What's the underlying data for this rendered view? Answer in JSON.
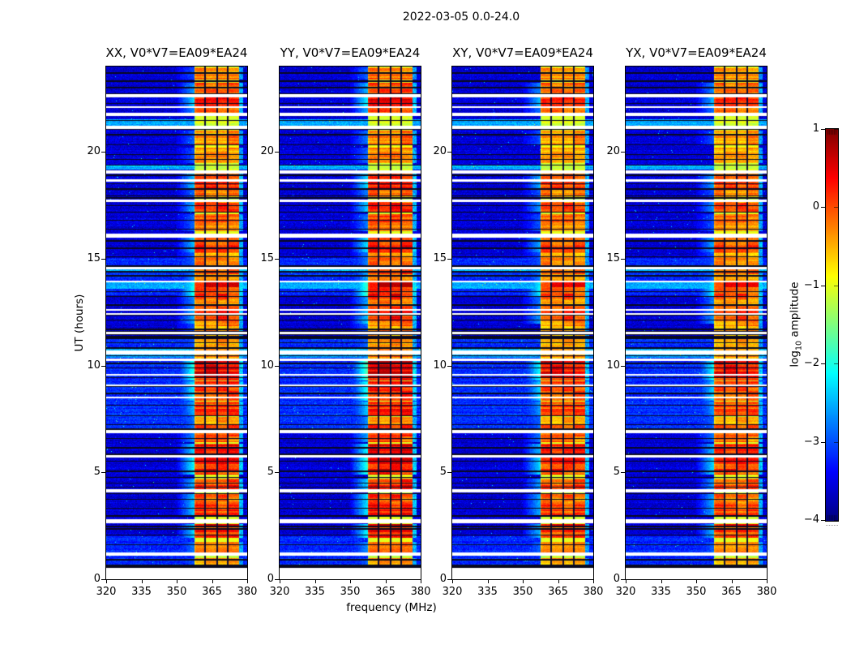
{
  "chart_data": {
    "type": "heatmap",
    "title": "2022-03-05 0.0-24.0",
    "xlabel": "frequency (MHz)",
    "ylabel": "UT (hours)",
    "x": {
      "unit": "MHz",
      "range": [
        320,
        383.3
      ],
      "ticks": [
        320,
        335,
        350,
        365,
        380
      ]
    },
    "y": {
      "unit": "hours",
      "range": [
        0,
        24
      ],
      "ticks": [
        0,
        5,
        10,
        15,
        20
      ]
    },
    "panels": [
      {
        "key": "XX",
        "title": "XX, V0*V7=EA09*EA24",
        "intensity": 1.0
      },
      {
        "key": "YY",
        "title": "YY, V0*V7=EA09*EA24",
        "intensity": 1.12
      },
      {
        "key": "XY",
        "title": "XY, V0*V7=EA09*EA24",
        "intensity": 0.92
      },
      {
        "key": "YX",
        "title": "YX, V0*V7=EA09*EA24",
        "intensity": 0.9
      }
    ],
    "colorbar": {
      "label": "log10 amplitude",
      "label_log": "log",
      "label_sub": "10",
      "label_rest": " amplitude",
      "range": [
        -4,
        1
      ],
      "ticks": [
        1,
        0,
        -1,
        -2,
        -3,
        -4
      ],
      "tick_labels": [
        "1",
        "0",
        "−1",
        "−2",
        "−3",
        "−4"
      ],
      "colormap": "jet"
    },
    "features": {
      "background_log_amplitude": -3.6,
      "rfi_band_mhz": [
        359.6,
        379.6
      ],
      "rfi_band_base_log_amplitude": -1.05,
      "flagged_channels_mhz": [
        364.3,
        369.9,
        374.5
      ],
      "no_data_below_ut": 0.55,
      "white_gaps_ut": [
        [
          22.65,
          2
        ],
        [
          22.12,
          1
        ],
        [
          21.76,
          3
        ],
        [
          21.16,
          2
        ],
        [
          19.08,
          3
        ],
        [
          18.68,
          1
        ],
        [
          17.73,
          1
        ],
        [
          16.1,
          3
        ],
        [
          14.58,
          1
        ],
        [
          13.94,
          1
        ],
        [
          12.61,
          1
        ],
        [
          12.42,
          1
        ],
        [
          11.54,
          1
        ],
        [
          10.63,
          3
        ],
        [
          10.29,
          1
        ],
        [
          9.57,
          1
        ],
        [
          9.08,
          1
        ],
        [
          8.51,
          1
        ],
        [
          6.93,
          3
        ],
        [
          5.77,
          1
        ],
        [
          4.14,
          3
        ],
        [
          2.73,
          3
        ],
        [
          1.18,
          3
        ]
      ],
      "cyan_rows_ut": [
        [
          21.55,
          21.02
        ],
        [
          19.42,
          19.18
        ],
        [
          14.62,
          14.38
        ],
        [
          13.9,
          13.58
        ],
        [
          10.8,
          10.35
        ]
      ],
      "light_bg_ut": [
        [
          11.3,
          6.95
        ],
        [
          15.05,
          13.3
        ],
        [
          2.0,
          0.6
        ]
      ],
      "black_rows_ut": [
        [
          11.78,
          11.3
        ],
        [
          17.97,
          17.78
        ],
        [
          2.5,
          2.28
        ]
      ],
      "bursts_ut": [
        [
          23.95,
          23.4,
          0.45
        ],
        [
          23.25,
          22.75,
          0.65
        ],
        [
          22.55,
          22.15,
          0.8
        ],
        [
          22.1,
          21.85,
          0.6
        ],
        [
          21.0,
          20.35,
          0.5
        ],
        [
          20.2,
          19.5,
          0.45
        ],
        [
          19.0,
          18.3,
          0.75
        ],
        [
          18.3,
          17.9,
          0.5
        ],
        [
          17.65,
          17.15,
          0.7
        ],
        [
          17.1,
          16.3,
          0.5
        ],
        [
          16.1,
          15.3,
          0.75
        ],
        [
          15.3,
          14.6,
          0.5
        ],
        [
          14.55,
          13.95,
          0.6
        ],
        [
          13.9,
          13.2,
          0.95
        ],
        [
          13.2,
          12.6,
          0.6
        ],
        [
          12.6,
          11.95,
          0.7
        ],
        [
          11.95,
          10.85,
          0.45
        ],
        [
          10.8,
          10.3,
          0.5
        ],
        [
          10.28,
          9.3,
          1.0
        ],
        [
          9.25,
          8.35,
          0.85
        ],
        [
          8.3,
          7.65,
          0.7
        ],
        [
          7.6,
          7.0,
          0.55
        ],
        [
          6.85,
          6.4,
          0.6
        ],
        [
          6.35,
          5.85,
          0.8
        ],
        [
          5.8,
          4.9,
          0.9
        ],
        [
          4.7,
          4.05,
          0.7
        ],
        [
          4.0,
          2.95,
          0.75
        ],
        [
          2.6,
          1.95,
          0.8
        ],
        [
          1.75,
          1.1,
          0.55
        ],
        [
          1.0,
          0.6,
          0.45
        ]
      ]
    }
  }
}
